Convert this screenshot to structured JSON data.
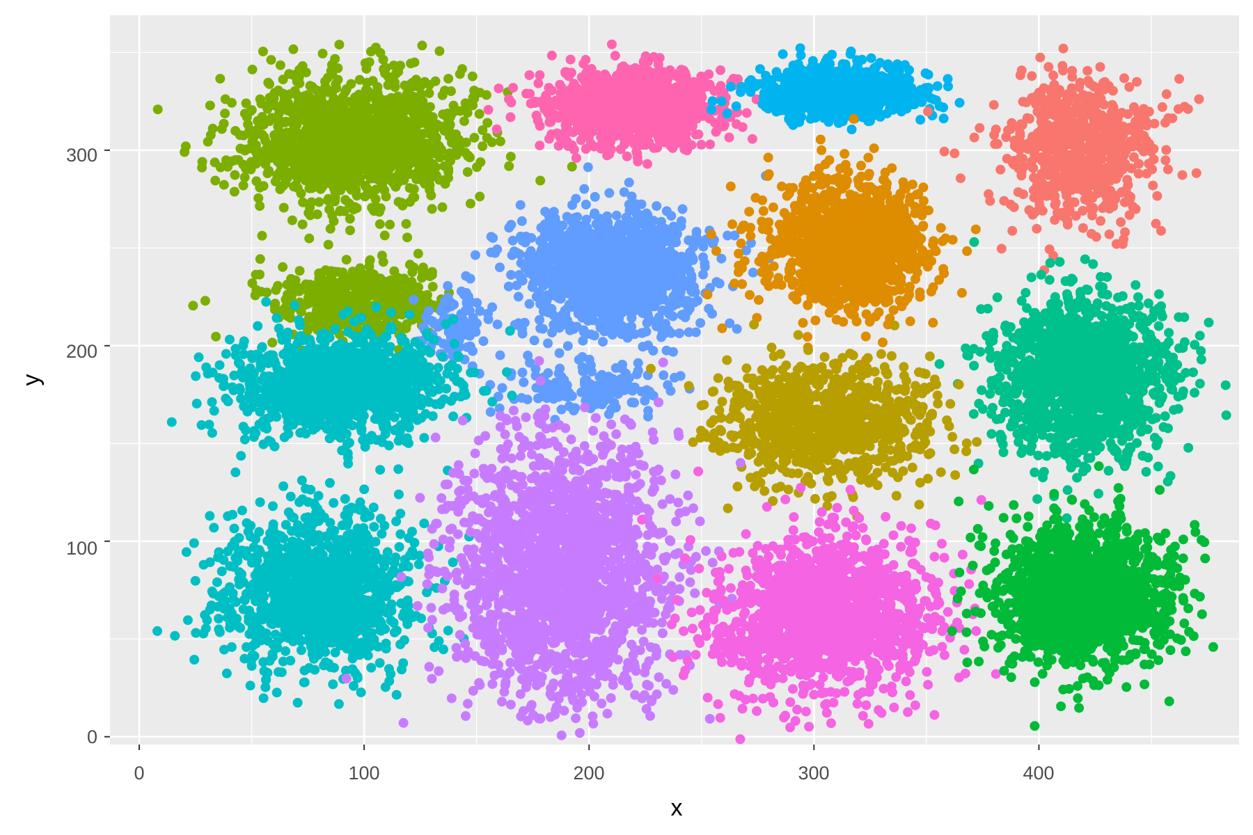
{
  "chart_data": {
    "type": "scatter",
    "title": "",
    "xlabel": "x",
    "ylabel": "y",
    "xlim": [
      -13,
      489
    ],
    "ylim": [
      -4,
      369
    ],
    "x_ticks": [
      0,
      100,
      200,
      300,
      400
    ],
    "y_ticks": [
      0,
      100,
      200,
      300
    ],
    "x_tick_labels": [
      "0",
      "100",
      "200",
      "300",
      "400"
    ],
    "y_tick_labels": [
      "0",
      "100",
      "200",
      "300"
    ],
    "grid": true,
    "legend": "none",
    "panel_background": "#ebebeb",
    "clusters": [
      {
        "color": "#7cae00",
        "cx": 95,
        "cy": 305,
        "sx": 24,
        "sy": 16,
        "n": 1400
      },
      {
        "color": "#ff64b0",
        "cx": 220,
        "cy": 322,
        "sx": 20,
        "sy": 10,
        "n": 1000
      },
      {
        "color": "#00b4ef",
        "cx": 312,
        "cy": 330,
        "sx": 17,
        "sy": 7,
        "n": 800
      },
      {
        "color": "#f8766d",
        "cx": 418,
        "cy": 300,
        "sx": 17,
        "sy": 18,
        "n": 700
      },
      {
        "color": "#7cae00",
        "cx": 95,
        "cy": 222,
        "sx": 18,
        "sy": 9,
        "n": 500
      },
      {
        "color": "#619cff",
        "cx": 210,
        "cy": 238,
        "sx": 20,
        "sy": 16,
        "n": 1300
      },
      {
        "color": "#619cff",
        "cx": 140,
        "cy": 210,
        "sx": 7,
        "sy": 9,
        "n": 120
      },
      {
        "color": "#619cff",
        "cx": 200,
        "cy": 178,
        "sx": 17,
        "sy": 7,
        "n": 150
      },
      {
        "color": "#de8c00",
        "cx": 315,
        "cy": 252,
        "sx": 18,
        "sy": 17,
        "n": 1200
      },
      {
        "color": "#00bfc4",
        "cx": 90,
        "cy": 180,
        "sx": 23,
        "sy": 13,
        "n": 1200
      },
      {
        "color": "#00c08b",
        "cx": 420,
        "cy": 185,
        "sx": 20,
        "sy": 20,
        "n": 1400
      },
      {
        "color": "#b79f00",
        "cx": 305,
        "cy": 162,
        "sx": 24,
        "sy": 15,
        "n": 1000
      },
      {
        "color": "#00bfc4",
        "cx": 80,
        "cy": 75,
        "sx": 21,
        "sy": 20,
        "n": 1200
      },
      {
        "color": "#c77cff",
        "cx": 188,
        "cy": 85,
        "sx": 24,
        "sy": 33,
        "n": 2000
      },
      {
        "color": "#f564e3",
        "cx": 305,
        "cy": 62,
        "sx": 25,
        "sy": 20,
        "n": 1400
      },
      {
        "color": "#00ba38",
        "cx": 420,
        "cy": 72,
        "sx": 19,
        "sy": 19,
        "n": 1400
      }
    ]
  }
}
